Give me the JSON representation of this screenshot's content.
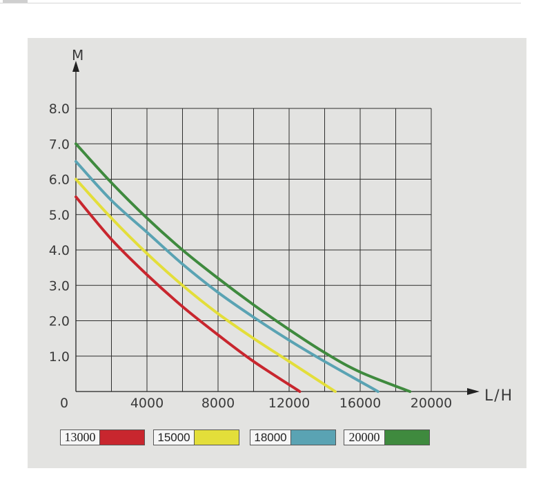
{
  "chart_data": {
    "type": "line",
    "xlabel": "L/H",
    "ylabel": "M",
    "xlim": [
      0,
      20000
    ],
    "ylim": [
      0,
      8.0
    ],
    "x_ticks": [
      "0",
      "4000",
      "8000",
      "12000",
      "16000",
      "20000"
    ],
    "y_ticks": [
      "1.0",
      "2.0",
      "3.0",
      "4.0",
      "5.0",
      "6.0",
      "7.0",
      "8.0"
    ],
    "grid": true,
    "legend_position": "bottom",
    "series": [
      {
        "name": "13000",
        "color": "#c8262e",
        "points": [
          [
            0,
            5.5
          ],
          [
            2000,
            4.3
          ],
          [
            4000,
            3.3
          ],
          [
            6000,
            2.4
          ],
          [
            8000,
            1.6
          ],
          [
            10000,
            0.85
          ],
          [
            12600,
            0
          ]
        ]
      },
      {
        "name": "15000",
        "color": "#e3de3a",
        "points": [
          [
            0,
            6.0
          ],
          [
            2000,
            4.9
          ],
          [
            4000,
            3.9
          ],
          [
            6000,
            3.0
          ],
          [
            8000,
            2.2
          ],
          [
            10000,
            1.5
          ],
          [
            12000,
            0.85
          ],
          [
            14600,
            0
          ]
        ]
      },
      {
        "name": "18000",
        "color": "#5aa3b3",
        "points": [
          [
            0,
            6.5
          ],
          [
            2000,
            5.4
          ],
          [
            4000,
            4.5
          ],
          [
            6000,
            3.6
          ],
          [
            8000,
            2.8
          ],
          [
            10000,
            2.1
          ],
          [
            12000,
            1.45
          ],
          [
            14000,
            0.85
          ],
          [
            17000,
            0
          ]
        ]
      },
      {
        "name": "20000",
        "color": "#3f8a3e",
        "points": [
          [
            0,
            7.0
          ],
          [
            2000,
            5.9
          ],
          [
            4000,
            4.9
          ],
          [
            6000,
            4.0
          ],
          [
            8000,
            3.2
          ],
          [
            10000,
            2.45
          ],
          [
            12000,
            1.75
          ],
          [
            14000,
            1.1
          ],
          [
            16000,
            0.55
          ],
          [
            18800,
            0
          ]
        ]
      }
    ]
  }
}
